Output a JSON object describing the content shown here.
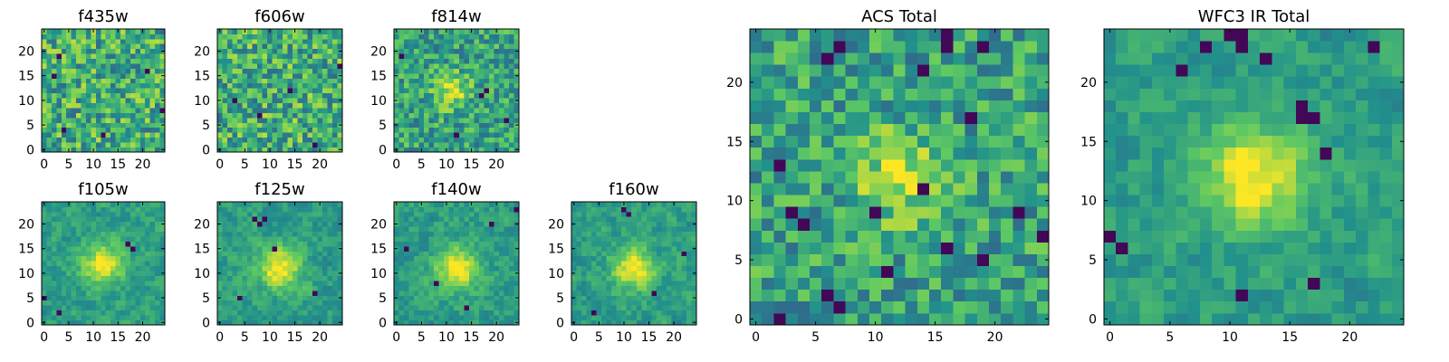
{
  "colormap": "viridis",
  "colormap_stops": [
    "#440154",
    "#3b528b",
    "#21918c",
    "#5ec962",
    "#fde725"
  ],
  "chart_data": [
    {
      "type": "heatmap",
      "title": "f435w",
      "grid_size": [
        25,
        25
      ],
      "xticks": [
        "0",
        "5",
        "10",
        "15",
        "20"
      ],
      "yticks": [
        "0",
        "5",
        "10",
        "15",
        "20"
      ],
      "xlim": [
        -0.5,
        24.5
      ],
      "ylim": [
        -0.5,
        24.5
      ],
      "pattern": "noise",
      "noise_seed": 11,
      "dark_pixels": [
        [
          2,
          15
        ],
        [
          3,
          19
        ],
        [
          12,
          3
        ],
        [
          21,
          16
        ],
        [
          4,
          4
        ],
        [
          24,
          8
        ]
      ]
    },
    {
      "type": "heatmap",
      "title": "f606w",
      "grid_size": [
        25,
        25
      ],
      "xticks": [
        "0",
        "5",
        "10",
        "15",
        "20"
      ],
      "yticks": [
        "0",
        "5",
        "10",
        "15",
        "20"
      ],
      "xlim": [
        -0.5,
        24.5
      ],
      "ylim": [
        -0.5,
        24.5
      ],
      "pattern": "noise",
      "noise_seed": 23,
      "dark_pixels": [
        [
          8,
          7
        ],
        [
          24,
          17
        ],
        [
          19,
          1
        ],
        [
          14,
          12
        ],
        [
          3,
          10
        ]
      ]
    },
    {
      "type": "heatmap",
      "title": "f814w",
      "grid_size": [
        25,
        25
      ],
      "xticks": [
        "0",
        "5",
        "10",
        "15",
        "20"
      ],
      "yticks": [
        "0",
        "5",
        "10",
        "15",
        "20"
      ],
      "xlim": [
        -0.5,
        24.5
      ],
      "ylim": [
        -0.5,
        24.5
      ],
      "pattern": "noise_with_source",
      "source_center": [
        11,
        12
      ],
      "noise_seed": 37,
      "dark_pixels": [
        [
          17,
          11
        ],
        [
          18,
          12
        ],
        [
          1,
          19
        ],
        [
          12,
          3
        ],
        [
          22,
          6
        ]
      ]
    },
    {
      "type": "heatmap",
      "title": "f105w",
      "grid_size": [
        25,
        25
      ],
      "xticks": [
        "0",
        "5",
        "10",
        "15",
        "20"
      ],
      "yticks": [
        "0",
        "5",
        "10",
        "15",
        "20"
      ],
      "xlim": [
        -0.5,
        24.5
      ],
      "ylim": [
        -0.5,
        24.5
      ],
      "pattern": "source",
      "source_center": [
        12,
        12
      ],
      "noise_seed": 41,
      "dark_pixels": [
        [
          17,
          16
        ],
        [
          18,
          15
        ],
        [
          0,
          5
        ],
        [
          3,
          2
        ]
      ]
    },
    {
      "type": "heatmap",
      "title": "f125w",
      "grid_size": [
        25,
        25
      ],
      "xticks": [
        "0",
        "5",
        "10",
        "15",
        "20"
      ],
      "yticks": [
        "0",
        "5",
        "10",
        "15",
        "20"
      ],
      "xlim": [
        -0.5,
        24.5
      ],
      "ylim": [
        -0.5,
        24.5
      ],
      "pattern": "source",
      "source_center": [
        12,
        11
      ],
      "noise_seed": 53,
      "dark_pixels": [
        [
          7,
          21
        ],
        [
          8,
          20
        ],
        [
          9,
          21
        ],
        [
          11,
          15
        ],
        [
          4,
          5
        ],
        [
          19,
          6
        ]
      ]
    },
    {
      "type": "heatmap",
      "title": "f140w",
      "grid_size": [
        25,
        25
      ],
      "xticks": [
        "0",
        "5",
        "10",
        "15",
        "20"
      ],
      "yticks": [
        "0",
        "5",
        "10",
        "15",
        "20"
      ],
      "xlim": [
        -0.5,
        24.5
      ],
      "ylim": [
        -0.5,
        24.5
      ],
      "pattern": "source",
      "source_center": [
        12,
        11
      ],
      "noise_seed": 67,
      "dark_pixels": [
        [
          24,
          23
        ],
        [
          2,
          15
        ],
        [
          14,
          3
        ],
        [
          8,
          8
        ],
        [
          19,
          20
        ]
      ]
    },
    {
      "type": "heatmap",
      "title": "f160w",
      "grid_size": [
        25,
        25
      ],
      "xticks": [
        "0",
        "5",
        "10",
        "15",
        "20"
      ],
      "yticks": [
        "0",
        "5",
        "10",
        "15",
        "20"
      ],
      "xlim": [
        -0.5,
        24.5
      ],
      "ylim": [
        -0.5,
        24.5
      ],
      "pattern": "source",
      "source_center": [
        12,
        11
      ],
      "noise_seed": 79,
      "dark_pixels": [
        [
          10,
          23
        ],
        [
          11,
          22
        ],
        [
          22,
          14
        ],
        [
          4,
          2
        ],
        [
          16,
          6
        ]
      ]
    },
    {
      "type": "heatmap",
      "title": "ACS Total",
      "grid_size": [
        25,
        25
      ],
      "xticks": [
        "0",
        "5",
        "10",
        "15",
        "20"
      ],
      "yticks": [
        "0",
        "5",
        "10",
        "15",
        "20"
      ],
      "xlim": [
        -0.5,
        24.5
      ],
      "ylim": [
        -0.5,
        24.5
      ],
      "pattern": "noise_with_source",
      "source_center": [
        12,
        12
      ],
      "noise_seed": 97,
      "dark_pixels": [
        [
          7,
          23
        ],
        [
          16,
          24
        ],
        [
          16,
          23
        ],
        [
          19,
          23
        ],
        [
          6,
          22
        ],
        [
          14,
          21
        ],
        [
          18,
          17
        ],
        [
          3,
          9
        ],
        [
          4,
          8
        ],
        [
          10,
          9
        ],
        [
          2,
          13
        ],
        [
          16,
          6
        ],
        [
          19,
          5
        ],
        [
          11,
          4
        ],
        [
          2,
          0
        ],
        [
          6,
          2
        ],
        [
          7,
          1
        ],
        [
          14,
          11
        ],
        [
          22,
          9
        ],
        [
          24,
          7
        ]
      ]
    },
    {
      "type": "heatmap",
      "title": "WFC3 IR Total",
      "grid_size": [
        25,
        25
      ],
      "xticks": [
        "0",
        "5",
        "10",
        "15",
        "20"
      ],
      "yticks": [
        "0",
        "5",
        "10",
        "15",
        "20"
      ],
      "xlim": [
        -0.5,
        24.5
      ],
      "ylim": [
        -0.5,
        24.5
      ],
      "pattern": "source",
      "source_center": [
        12,
        12
      ],
      "noise_seed": 113,
      "dark_pixels": [
        [
          10,
          24
        ],
        [
          11,
          24
        ],
        [
          11,
          23
        ],
        [
          8,
          23
        ],
        [
          16,
          18
        ],
        [
          16,
          17
        ],
        [
          17,
          17
        ],
        [
          18,
          14
        ],
        [
          0,
          7
        ],
        [
          1,
          6
        ],
        [
          11,
          2
        ],
        [
          17,
          3
        ],
        [
          6,
          21
        ],
        [
          13,
          22
        ],
        [
          22,
          23
        ]
      ]
    }
  ]
}
